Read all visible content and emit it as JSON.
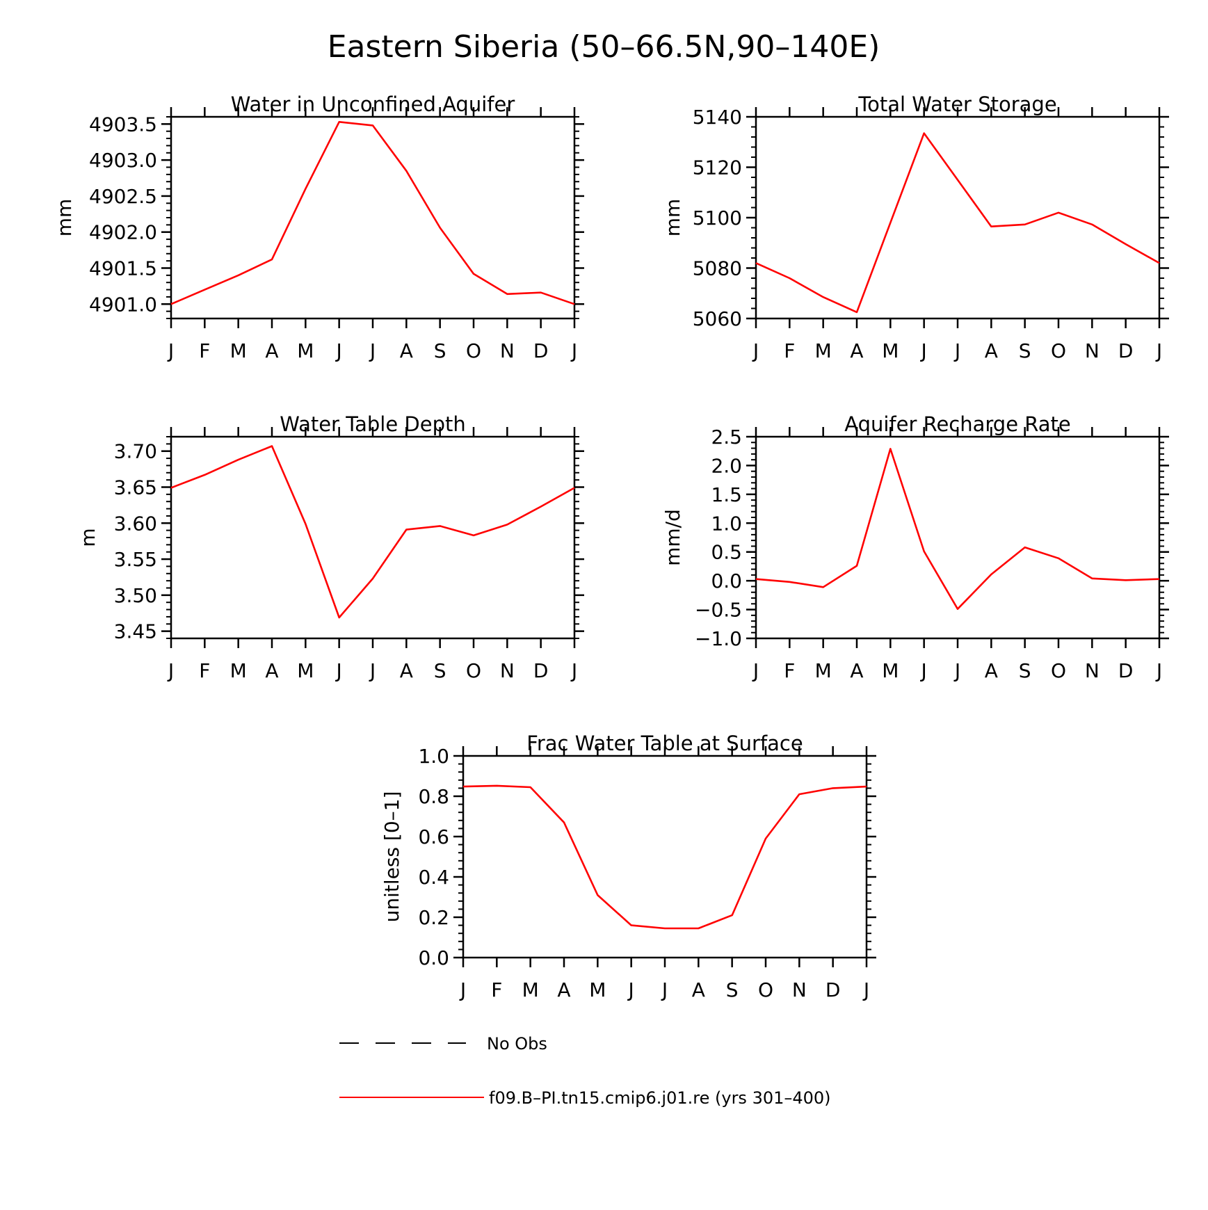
{
  "figure": {
    "title": "Eastern Siberia (50–66.5N,90–140E)"
  },
  "colors": {
    "model": "#ff0000",
    "obs": "#000000",
    "axes": "#000000"
  },
  "legend": {
    "obs_label": "No Obs",
    "model_label": "f09.B–PI.tn15.cmip6.j01.re (yrs 301–400)"
  },
  "chart_data": [
    {
      "type": "line",
      "title": "Water in Unconfined Aquifer",
      "ylabel": "mm",
      "categories": [
        "J",
        "F",
        "M",
        "A",
        "M",
        "J",
        "J",
        "A",
        "S",
        "O",
        "N",
        "D",
        "J"
      ],
      "ylim": [
        4900.8,
        4903.6
      ],
      "yticks": [
        "4901.0",
        "4901.5",
        "4902.0",
        "4902.5",
        "4903.0",
        "4903.5"
      ],
      "series": [
        {
          "values": [
            4901.0,
            4901.2,
            4901.4,
            4901.62,
            4902.6,
            4903.53,
            4903.48,
            4902.85,
            4902.06,
            4901.42,
            4901.14,
            4901.16,
            4901.0
          ]
        }
      ]
    },
    {
      "type": "line",
      "title": "Total Water Storage",
      "ylabel": "mm",
      "categories": [
        "J",
        "F",
        "M",
        "A",
        "M",
        "J",
        "J",
        "A",
        "S",
        "O",
        "N",
        "D",
        "J"
      ],
      "ylim": [
        5060,
        5140
      ],
      "yticks": [
        "5060",
        "5080",
        "5100",
        "5120",
        "5140"
      ],
      "series": [
        {
          "values": [
            5082,
            5076,
            5068.5,
            5062.5,
            5098,
            5133.5,
            5115,
            5096.5,
            5097.3,
            5102,
            5097.3,
            5089.5,
            5082
          ]
        }
      ]
    },
    {
      "type": "line",
      "title": "Water Table Depth",
      "ylabel": "m",
      "categories": [
        "J",
        "F",
        "M",
        "A",
        "M",
        "J",
        "J",
        "A",
        "S",
        "O",
        "N",
        "D",
        "J"
      ],
      "ylim": [
        3.44,
        3.72
      ],
      "yticks": [
        "3.45",
        "3.50",
        "3.55",
        "3.60",
        "3.65",
        "3.70"
      ],
      "series": [
        {
          "values": [
            3.649,
            3.667,
            3.688,
            3.707,
            3.599,
            3.469,
            3.523,
            3.591,
            3.596,
            3.583,
            3.598,
            3.623,
            3.649
          ]
        }
      ]
    },
    {
      "type": "line",
      "title": "Aquifer Recharge Rate",
      "ylabel": "mm/d",
      "categories": [
        "J",
        "F",
        "M",
        "A",
        "M",
        "J",
        "J",
        "A",
        "S",
        "O",
        "N",
        "D",
        "J"
      ],
      "ylim": [
        -1.0,
        2.5
      ],
      "yticks": [
        "−1.0",
        "−0.5",
        "0.0",
        "0.5",
        "1.0",
        "1.5",
        "2.0",
        "2.5"
      ],
      "series": [
        {
          "values": [
            0.03,
            -0.02,
            -0.11,
            0.26,
            2.29,
            0.51,
            -0.49,
            0.11,
            0.58,
            0.39,
            0.04,
            0.01,
            0.03
          ]
        }
      ]
    },
    {
      "type": "line",
      "title": "Frac Water Table at Surface",
      "ylabel": "unitless [0–1]",
      "categories": [
        "J",
        "F",
        "M",
        "A",
        "M",
        "J",
        "J",
        "A",
        "S",
        "O",
        "N",
        "D",
        "J"
      ],
      "ylim": [
        0.0,
        1.0
      ],
      "yticks": [
        "0.0",
        "0.2",
        "0.4",
        "0.6",
        "0.8",
        "1.0"
      ],
      "series": [
        {
          "values": [
            0.848,
            0.852,
            0.845,
            0.67,
            0.31,
            0.16,
            0.145,
            0.145,
            0.21,
            0.59,
            0.81,
            0.84,
            0.848
          ]
        }
      ]
    }
  ]
}
